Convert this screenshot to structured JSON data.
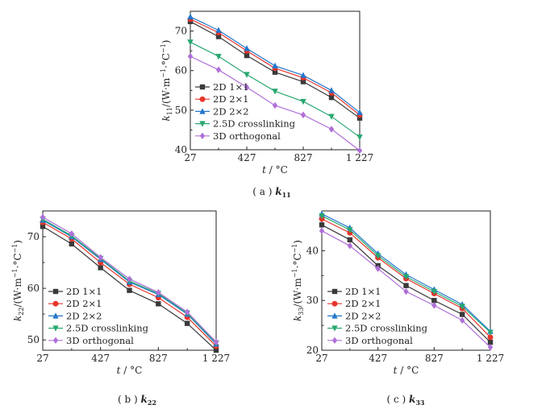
{
  "x_tick_labels": [
    "27",
    "427",
    "827",
    "1 227"
  ],
  "legend": [
    "2D 1×1",
    "2D 2×1",
    "2D 2×2",
    "2.5D crosslinking",
    "3D orthogonal"
  ],
  "series_colors": [
    "#3a3a3a",
    "#e8352b",
    "#2277cc",
    "#28a870",
    "#b070d8"
  ],
  "series_markers": [
    "square",
    "circle",
    "triangle",
    "diamond-down",
    "diamond"
  ],
  "chart_data": [
    {
      "type": "line",
      "caption": {
        "prefix": "( a )",
        "symbol": "k",
        "sub": "11"
      },
      "ylabel": {
        "symbol": "k",
        "sub": "11",
        "unit": "/(W·m",
        "exp": "−1",
        "unit2": "·°C",
        "exp2": "−1",
        "close": ")"
      },
      "xlabel": {
        "symbol": "t",
        "unit": " / °C"
      },
      "x": [
        27,
        227,
        427,
        627,
        827,
        1027,
        1227
      ],
      "xlim": [
        27,
        1227
      ],
      "ylim": [
        40,
        75
      ],
      "yticks": [
        40,
        50,
        60,
        70
      ],
      "legend_position": "bottom-left",
      "series": [
        {
          "name": "2D 1×1",
          "values": [
            72.4,
            68.6,
            63.8,
            59.6,
            57.2,
            53.2,
            48.0
          ]
        },
        {
          "name": "2D 2×1",
          "values": [
            73.0,
            69.6,
            65.0,
            60.6,
            58.2,
            54.4,
            48.8
          ]
        },
        {
          "name": "2D 2×2",
          "values": [
            73.6,
            70.2,
            65.6,
            61.2,
            58.8,
            55.0,
            49.4
          ]
        },
        {
          "name": "2.5D crosslinking",
          "values": [
            67.2,
            63.6,
            59.0,
            54.8,
            52.2,
            48.4,
            43.2
          ]
        },
        {
          "name": "3D orthogonal",
          "values": [
            63.6,
            60.2,
            55.8,
            51.2,
            48.8,
            45.2,
            39.8
          ]
        }
      ]
    },
    {
      "type": "line",
      "caption": {
        "prefix": "( b )",
        "symbol": "k",
        "sub": "22"
      },
      "ylabel": {
        "symbol": "k",
        "sub": "22",
        "unit": "/(W·m",
        "exp": "−1",
        "unit2": "·°C",
        "exp2": "−1",
        "close": ")"
      },
      "xlabel": {
        "symbol": "t",
        "unit": " / °C"
      },
      "x": [
        27,
        227,
        427,
        627,
        827,
        1027,
        1227
      ],
      "xlim": [
        27,
        1227
      ],
      "ylim": [
        48,
        75
      ],
      "yticks": [
        50,
        60,
        70
      ],
      "legend_position": "bottom-left",
      "series": [
        {
          "name": "2D 1×1",
          "values": [
            72.0,
            68.6,
            64.0,
            59.6,
            57.0,
            53.2,
            48.0
          ]
        },
        {
          "name": "2D 2×1",
          "values": [
            72.8,
            69.6,
            65.0,
            60.8,
            58.2,
            54.4,
            48.8
          ]
        },
        {
          "name": "2D 2×2",
          "values": [
            73.2,
            70.0,
            65.6,
            61.2,
            58.8,
            55.0,
            49.2
          ]
        },
        {
          "name": "2.5D crosslinking",
          "values": [
            73.4,
            70.2,
            65.8,
            61.4,
            59.0,
            55.2,
            49.4
          ]
        },
        {
          "name": "3D orthogonal",
          "values": [
            73.8,
            70.6,
            66.0,
            61.8,
            59.2,
            55.4,
            49.6
          ]
        }
      ]
    },
    {
      "type": "line",
      "caption": {
        "prefix": "( c )",
        "symbol": "k",
        "sub": "33"
      },
      "ylabel": {
        "symbol": "k",
        "sub": "33",
        "unit": "/(W·m",
        "exp": "−1",
        "unit2": "·°C",
        "exp2": "−1",
        "close": ")"
      },
      "xlabel": {
        "symbol": "t",
        "unit": " / °C"
      },
      "x": [
        27,
        227,
        427,
        627,
        827,
        1027,
        1227
      ],
      "xlim": [
        27,
        1227
      ],
      "ylim": [
        20,
        48
      ],
      "yticks": [
        20,
        30,
        40
      ],
      "legend_position": "bottom-left",
      "series": [
        {
          "name": "2D 1×1",
          "values": [
            45.2,
            42.2,
            37.0,
            33.0,
            30.0,
            27.2,
            21.6
          ]
        },
        {
          "name": "2D 2×1",
          "values": [
            46.4,
            43.6,
            38.6,
            34.4,
            31.4,
            28.4,
            22.6
          ]
        },
        {
          "name": "2D 2×2",
          "values": [
            47.4,
            44.6,
            39.4,
            35.2,
            32.2,
            29.2,
            23.8
          ]
        },
        {
          "name": "2.5D crosslinking",
          "values": [
            47.0,
            44.2,
            39.0,
            34.8,
            31.8,
            28.8,
            23.6
          ]
        },
        {
          "name": "3D orthogonal",
          "values": [
            44.0,
            41.0,
            36.4,
            31.8,
            29.0,
            26.0,
            20.6
          ]
        }
      ]
    }
  ]
}
